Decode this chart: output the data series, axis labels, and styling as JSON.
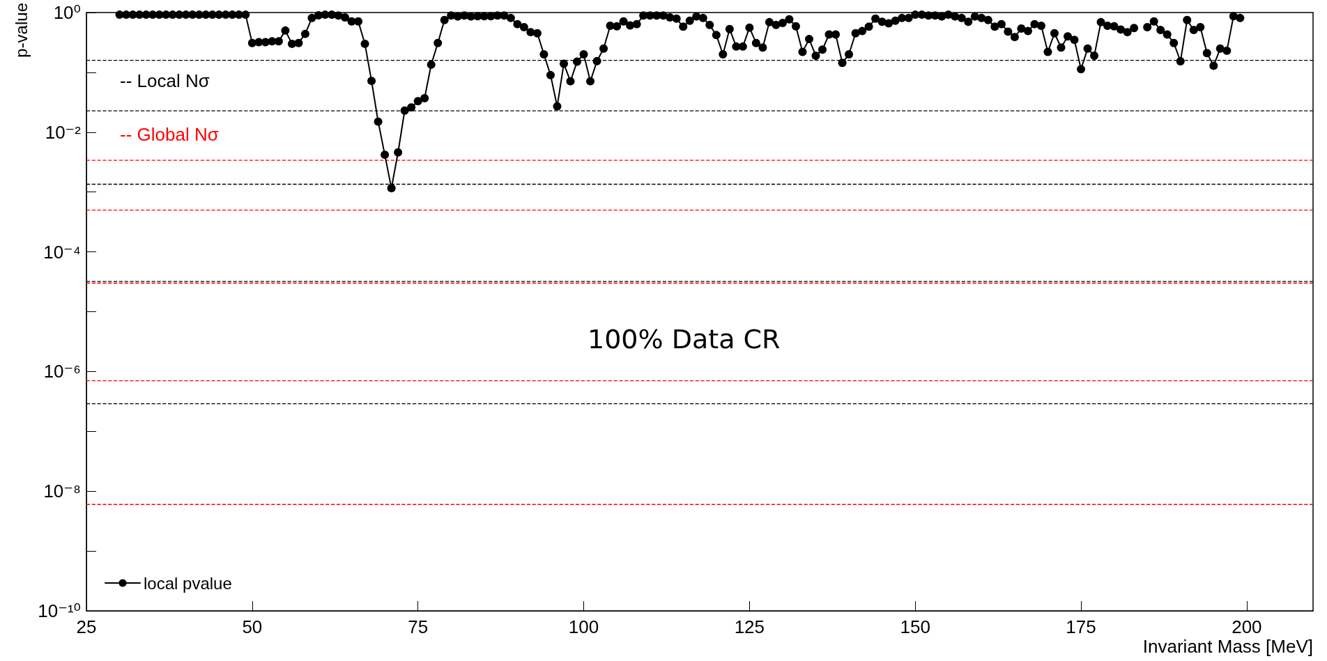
{
  "chart_data": {
    "type": "line",
    "xlabel": "Invariant Mass [MeV]",
    "ylabel": "p-value",
    "x": [
      30,
      31,
      32,
      33,
      34,
      35,
      36,
      37,
      38,
      39,
      40,
      41,
      42,
      43,
      44,
      45,
      46,
      47,
      48,
      49,
      50,
      51,
      52,
      53,
      54,
      55,
      56,
      57,
      58,
      59,
      60,
      61,
      62,
      63,
      64,
      65,
      66,
      67,
      68,
      69,
      70,
      71,
      72,
      73,
      74,
      75,
      76,
      77,
      78,
      79,
      80,
      81,
      82,
      83,
      84,
      85,
      86,
      87,
      88,
      89,
      90,
      91,
      92,
      93,
      94,
      95,
      96,
      97,
      98,
      99,
      100,
      101,
      102,
      103,
      104,
      105,
      106,
      107,
      108,
      109,
      110,
      111,
      112,
      113,
      114,
      115,
      116,
      117,
      118,
      119,
      120,
      121,
      122,
      123,
      124,
      125,
      126,
      127,
      128,
      129,
      130,
      131,
      132,
      133,
      134,
      135,
      136,
      137,
      138,
      139,
      140,
      141,
      142,
      143,
      144,
      145,
      146,
      147,
      148,
      149,
      150,
      151,
      152,
      153,
      154,
      155,
      156,
      157,
      158,
      159,
      160,
      161,
      162,
      163,
      164,
      165,
      166,
      167,
      168,
      169,
      170,
      171,
      172,
      173,
      174,
      175,
      176,
      177,
      178,
      179,
      180,
      181,
      182,
      183,
      184,
      185,
      186,
      187,
      188,
      189,
      190,
      191,
      192,
      193,
      194,
      195,
      196,
      197,
      198,
      199
    ],
    "series": [
      {
        "name": "local pvalue",
        "color": "#000000",
        "values": [
          0.92,
          0.92,
          0.92,
          0.92,
          0.92,
          0.92,
          0.92,
          0.92,
          0.92,
          0.92,
          0.92,
          0.92,
          0.92,
          0.92,
          0.92,
          0.92,
          0.92,
          0.92,
          0.92,
          0.92,
          0.31,
          0.32,
          0.32,
          0.33,
          0.33,
          0.5,
          0.3,
          0.31,
          0.44,
          0.81,
          0.9,
          0.92,
          0.92,
          0.89,
          0.83,
          0.71,
          0.71,
          0.3,
          0.072,
          0.015,
          0.0042,
          0.00116,
          0.0046,
          0.023,
          0.026,
          0.033,
          0.037,
          0.135,
          0.31,
          0.75,
          0.89,
          0.86,
          0.89,
          0.86,
          0.87,
          0.87,
          0.87,
          0.89,
          0.89,
          0.81,
          0.64,
          0.57,
          0.47,
          0.45,
          0.2,
          0.09,
          0.027,
          0.139,
          0.071,
          0.151,
          0.2,
          0.071,
          0.154,
          0.25,
          0.6,
          0.59,
          0.71,
          0.61,
          0.64,
          0.89,
          0.89,
          0.89,
          0.89,
          0.83,
          0.79,
          0.58,
          0.73,
          0.86,
          0.81,
          0.62,
          0.42,
          0.2,
          0.53,
          0.27,
          0.27,
          0.56,
          0.31,
          0.26,
          0.69,
          0.62,
          0.67,
          0.77,
          0.59,
          0.22,
          0.36,
          0.19,
          0.24,
          0.43,
          0.43,
          0.144,
          0.2,
          0.45,
          0.49,
          0.58,
          0.79,
          0.7,
          0.66,
          0.73,
          0.81,
          0.81,
          0.92,
          0.92,
          0.89,
          0.89,
          0.86,
          0.92,
          0.86,
          0.81,
          0.7,
          0.86,
          0.81,
          0.75,
          0.58,
          0.64,
          0.48,
          0.39,
          0.54,
          0.49,
          0.64,
          0.6,
          0.22,
          0.45,
          0.26,
          0.4,
          0.35,
          0.113,
          0.25,
          0.19,
          0.69,
          0.6,
          0.59,
          0.52,
          0.47,
          0.55,
          null,
          0.57,
          0.71,
          0.51,
          0.43,
          0.31,
          0.153,
          0.75,
          0.51,
          0.57,
          0.21,
          0.129,
          0.25,
          0.23,
          0.87,
          0.81
        ]
      }
    ],
    "xlim": [
      25,
      210
    ],
    "xticks": [
      25,
      50,
      75,
      100,
      125,
      150,
      175,
      200
    ],
    "ylim": [
      1e-10,
      1
    ],
    "yticks": [
      {
        "value": 1,
        "label": "10⁰"
      },
      {
        "value": 0.1,
        "label": null
      },
      {
        "value": 0.01,
        "label": "10⁻²"
      },
      {
        "value": 0.001,
        "label": null
      },
      {
        "value": 0.0001,
        "label": "10⁻⁴"
      },
      {
        "value": 1e-05,
        "label": null
      },
      {
        "value": 1e-06,
        "label": "10⁻⁶"
      },
      {
        "value": 1e-07,
        "label": null
      },
      {
        "value": 1e-08,
        "label": "10⁻⁸"
      },
      {
        "value": 1e-09,
        "label": null
      },
      {
        "value": 1e-10,
        "label": "10⁻¹⁰"
      }
    ],
    "log": "y",
    "grid": false,
    "marker": "circle",
    "line_style": "solid",
    "legend": "bottom left",
    "ref_lines": [
      {
        "axis": "y",
        "value": 0.159,
        "color": "#000000",
        "line_style": "dashed"
      },
      {
        "axis": "y",
        "value": 0.0228,
        "color": "#000000",
        "line_style": "dashed"
      },
      {
        "axis": "y",
        "value": 0.00135,
        "color": "#000000",
        "line_style": "dashed"
      },
      {
        "axis": "y",
        "value": 3.2e-05,
        "color": "#000000",
        "line_style": "dashed"
      },
      {
        "axis": "y",
        "value": 2.9e-07,
        "color": "#000000",
        "line_style": "dashed"
      },
      {
        "axis": "y",
        "value": 0.0034,
        "color": "#ff0000",
        "line_style": "dashed"
      },
      {
        "axis": "y",
        "value": 0.0005,
        "color": "#ff0000",
        "line_style": "dashed"
      },
      {
        "axis": "y",
        "value": 3e-05,
        "color": "#ff0000",
        "line_style": "dashed"
      },
      {
        "axis": "y",
        "value": 7e-07,
        "color": "#ff0000",
        "line_style": "dashed"
      },
      {
        "axis": "y",
        "value": 6e-09,
        "color": "#ff0000",
        "line_style": "dashed"
      }
    ],
    "annotations": [
      "-- Local Nσ",
      "-- Global Nσ",
      "100% Data CR"
    ]
  }
}
